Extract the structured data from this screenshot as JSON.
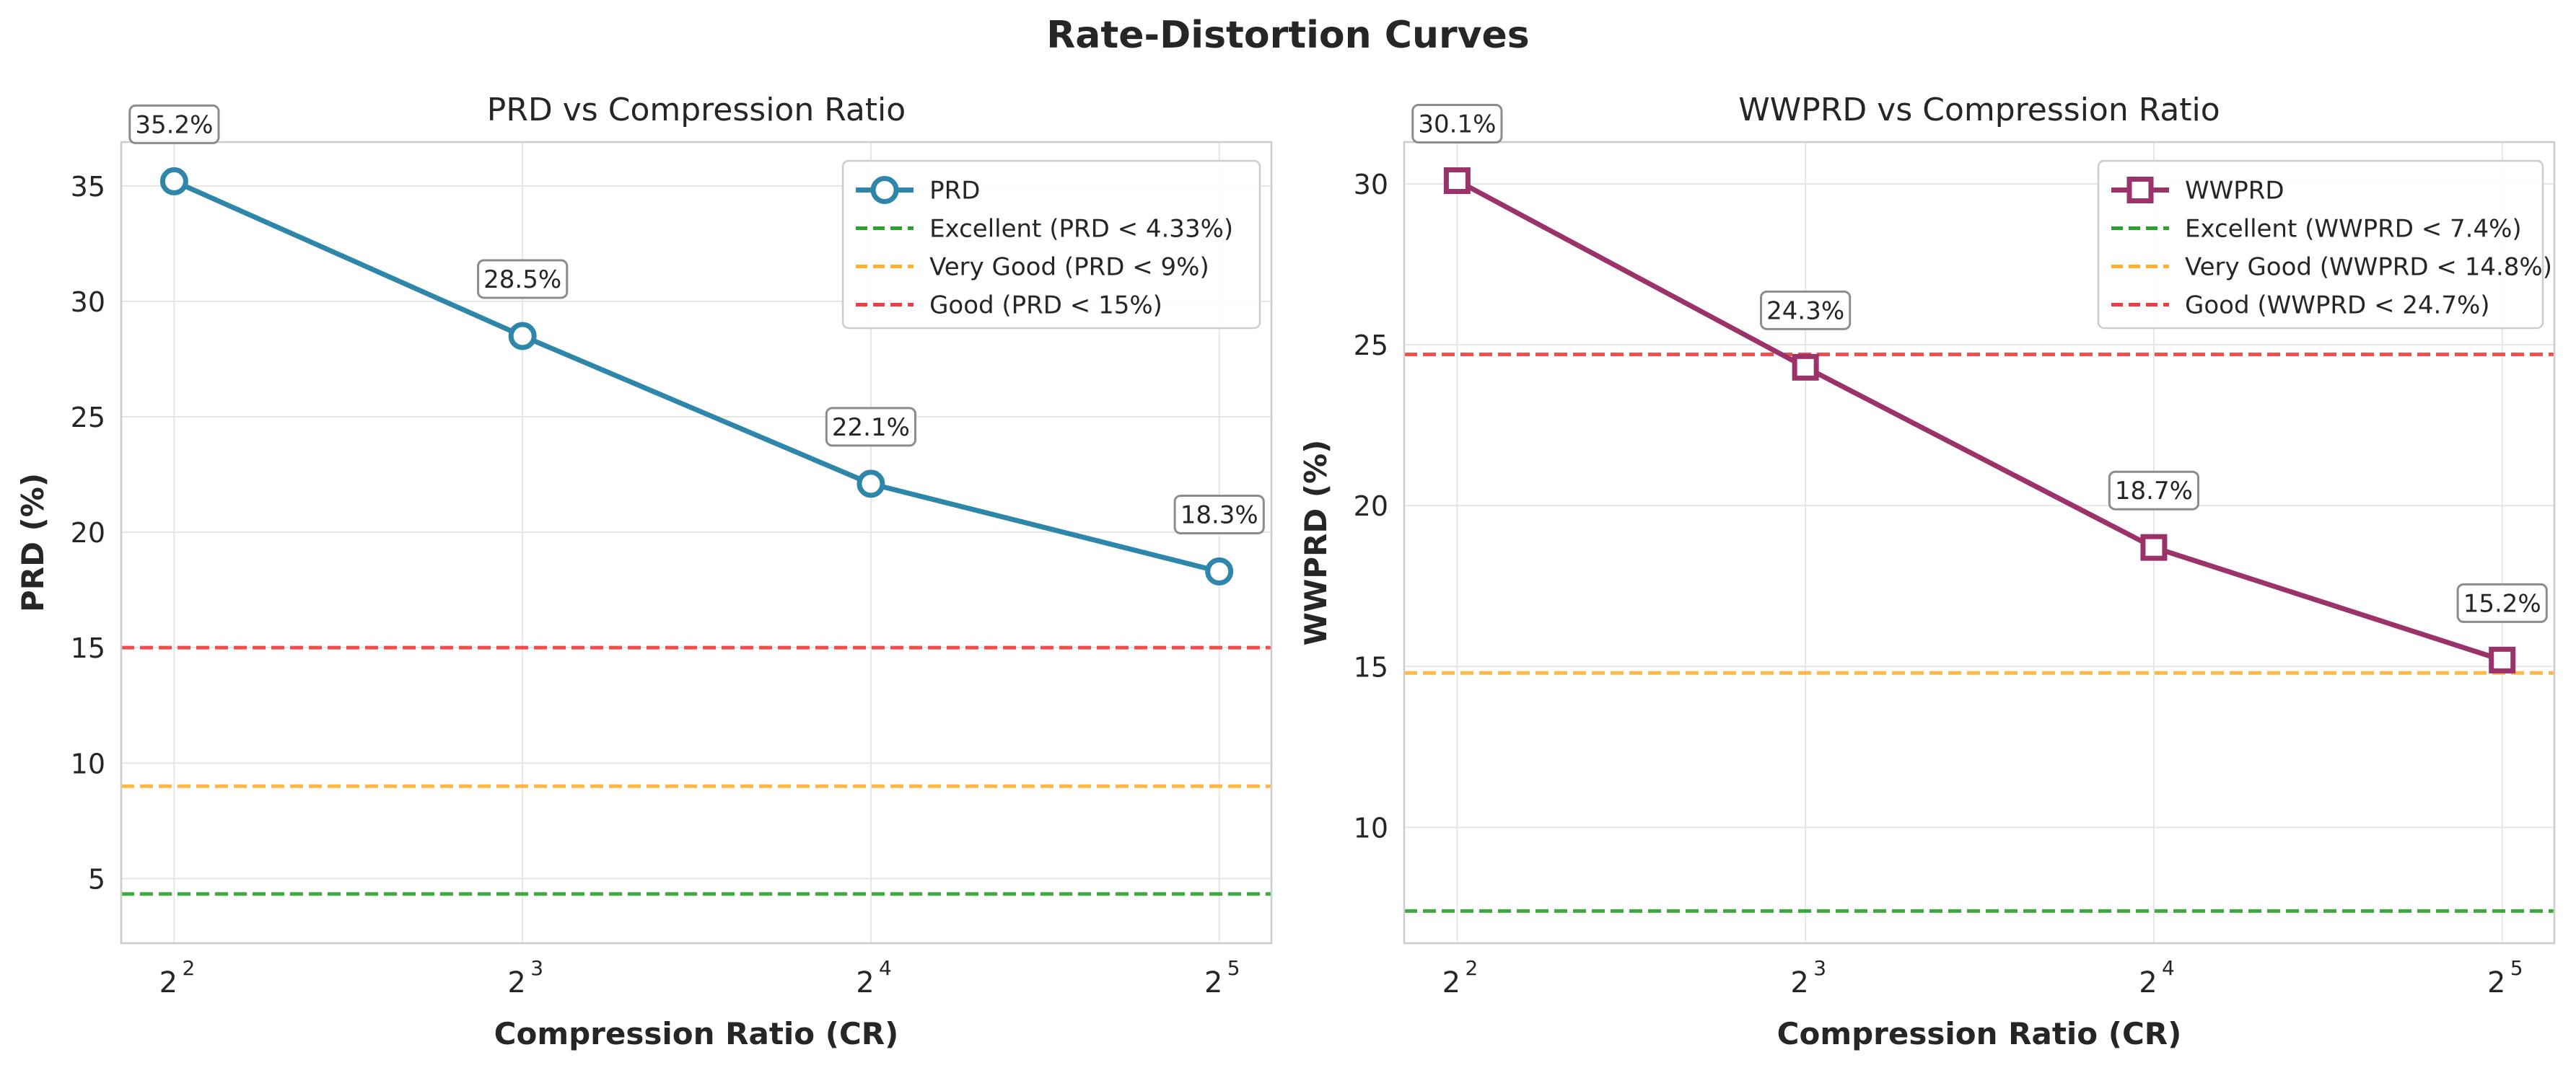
{
  "figure": {
    "title": "Rate-Distortion Curves"
  },
  "chart_data": [
    {
      "type": "line",
      "title": "PRD vs Compression Ratio",
      "xlabel": "Compression Ratio (CR)",
      "ylabel": "PRD (%)",
      "x_scale": "log2",
      "x": [
        4,
        8,
        16,
        32
      ],
      "x_tick_labels": [
        {
          "base": "2",
          "exp": "2"
        },
        {
          "base": "2",
          "exp": "3"
        },
        {
          "base": "2",
          "exp": "4"
        },
        {
          "base": "2",
          "exp": "5"
        }
      ],
      "xlim": [
        3.6,
        35.5
      ],
      "ylim": [
        2.2,
        36.9
      ],
      "y_ticks": [
        5,
        10,
        15,
        20,
        25,
        30,
        35
      ],
      "grid": true,
      "legend": "top-right",
      "series": [
        {
          "name": "PRD",
          "values": [
            35.2,
            28.5,
            22.1,
            18.3
          ],
          "color": "#2e86ab",
          "marker": "circle",
          "data_labels": [
            "35.2%",
            "28.5%",
            "22.1%",
            "18.3%"
          ]
        }
      ],
      "thresholds": [
        {
          "name": "Excellent (PRD < 4.33%)",
          "value": 4.33,
          "color": "#2ca02c"
        },
        {
          "name": "Very Good (PRD < 9%)",
          "value": 9,
          "color": "#ffb033"
        },
        {
          "name": "Good (PRD < 15%)",
          "value": 15,
          "color": "#f03c3c"
        }
      ]
    },
    {
      "type": "line",
      "title": "WWPRD vs Compression Ratio",
      "xlabel": "Compression Ratio (CR)",
      "ylabel": "WWPRD (%)",
      "x_scale": "log2",
      "x": [
        4,
        8,
        16,
        32
      ],
      "x_tick_labels": [
        {
          "base": "2",
          "exp": "2"
        },
        {
          "base": "2",
          "exp": "3"
        },
        {
          "base": "2",
          "exp": "4"
        },
        {
          "base": "2",
          "exp": "5"
        }
      ],
      "xlim": [
        3.6,
        35.5
      ],
      "ylim": [
        6.4,
        31.3
      ],
      "y_ticks": [
        10,
        15,
        20,
        25,
        30
      ],
      "grid": true,
      "legend": "top-right",
      "series": [
        {
          "name": "WWPRD",
          "values": [
            30.1,
            24.3,
            18.7,
            15.2
          ],
          "color": "#9b3269",
          "marker": "square",
          "data_labels": [
            "30.1%",
            "24.3%",
            "18.7%",
            "15.2%"
          ]
        }
      ],
      "thresholds": [
        {
          "name": "Excellent (WWPRD < 7.4%)",
          "value": 7.4,
          "color": "#2ca02c"
        },
        {
          "name": "Very Good (WWPRD < 14.8%)",
          "value": 14.8,
          "color": "#ffb033"
        },
        {
          "name": "Good (WWPRD < 24.7%)",
          "value": 24.7,
          "color": "#f03c3c"
        }
      ]
    }
  ]
}
